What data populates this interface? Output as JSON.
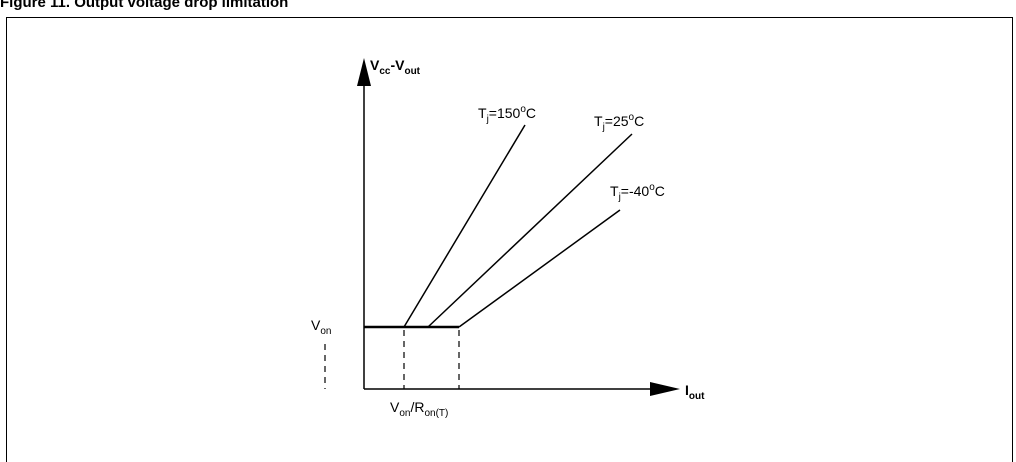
{
  "figure": {
    "caption": "Figure 11. Output voltage drop limitation"
  },
  "axes": {
    "y_label_main": "V",
    "y_label_sub": "cc",
    "y_label_mid": "-V",
    "y_label_sub2": "out",
    "x_label_main": "I",
    "x_label_sub": "out"
  },
  "levels": {
    "von_main": "V",
    "von_sub": "on",
    "ratio_main": "V",
    "ratio_sub": "on",
    "ratio_mid": "/R",
    "ratio_sub2": "on(T)"
  },
  "curves": [
    {
      "t_main": "T",
      "t_sub": "j",
      "t_value": "=150",
      "t_deg": "o",
      "t_unit": "C"
    },
    {
      "t_main": "T",
      "t_sub": "j",
      "t_value": "=25",
      "t_deg": "o",
      "t_unit": "C"
    },
    {
      "t_main": "T",
      "t_sub": "j",
      "t_value": "=-40",
      "t_deg": "o",
      "t_unit": "C"
    }
  ]
}
